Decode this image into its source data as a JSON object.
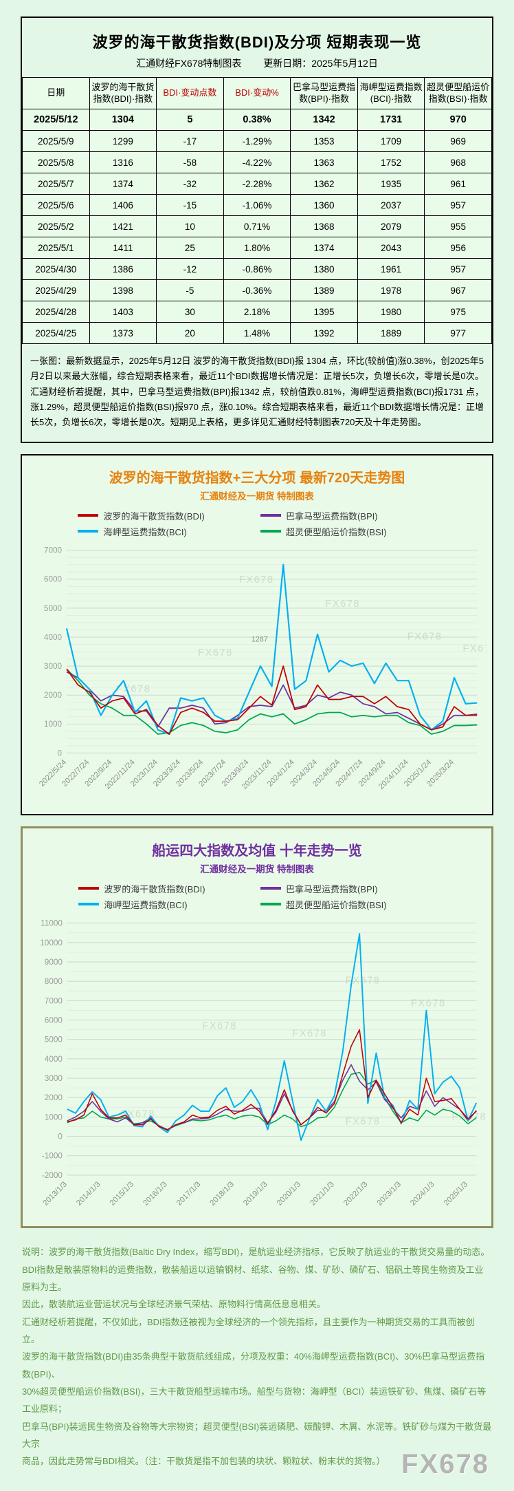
{
  "page": {
    "watermark": "FX678"
  },
  "colors": {
    "bdi": "#c00000",
    "bpi": "#7030a0",
    "bci": "#00b0f0",
    "bsi": "#00a651",
    "table_header_green": "#76f3ad",
    "accent_orange": "#e7820e",
    "accent_purple": "#7030a0",
    "footer_green": "#5f9a48",
    "page_bg": "#e3f7e6"
  },
  "panel1": {
    "title": "波罗的海干散货指数(BDI)及分项  短期表现一览",
    "source": "汇通财经FX678特制图表",
    "updated": "更新日期：2025年5月12日",
    "table": {
      "headers": [
        "日期",
        "波罗的海干散货指数(BDI)·指数",
        "BDI·变动点数",
        "BDI·变动%",
        "巴拿马型运费指数(BPI)·指数",
        "海岬型运费指数(BCI)·指数",
        "超灵便型船运价指数(BSI)·指数"
      ],
      "rows": [
        [
          "2025/5/12",
          "1304",
          "5",
          "0.38%",
          "1342",
          "1731",
          "970"
        ],
        [
          "2025/5/9",
          "1299",
          "-17",
          "-1.29%",
          "1353",
          "1709",
          "969"
        ],
        [
          "2025/5/8",
          "1316",
          "-58",
          "-4.22%",
          "1363",
          "1752",
          "968"
        ],
        [
          "2025/5/7",
          "1374",
          "-32",
          "-2.28%",
          "1362",
          "1935",
          "961"
        ],
        [
          "2025/5/6",
          "1406",
          "-15",
          "-1.06%",
          "1360",
          "2037",
          "957"
        ],
        [
          "2025/5/2",
          "1421",
          "10",
          "0.71%",
          "1368",
          "2079",
          "955"
        ],
        [
          "2025/5/1",
          "1411",
          "25",
          "1.80%",
          "1374",
          "2043",
          "956"
        ],
        [
          "2025/4/30",
          "1386",
          "-12",
          "-0.86%",
          "1380",
          "1961",
          "957"
        ],
        [
          "2025/4/29",
          "1398",
          "-5",
          "-0.36%",
          "1389",
          "1978",
          "967"
        ],
        [
          "2025/4/28",
          "1403",
          "30",
          "2.18%",
          "1395",
          "1980",
          "975"
        ],
        [
          "2025/4/25",
          "1373",
          "20",
          "1.48%",
          "1392",
          "1889",
          "977"
        ]
      ]
    },
    "summary": "一张图：最新数据显示，2025年5月12日 波罗的海干散货指数(BDI)报 1304 点，环比(较前值)涨0.38%，创2025年5月2日以来最大涨幅，综合短期表格来看，最近11个BDI数据增长情况是：正增长5次，负增长6次，零增长是0次。汇通财经析若提醒，其中，巴拿马型运费指数(BPI)报1342 点，较前值跌0.81%，海岬型运费指数(BCI)报1731 点，涨1.29%，超灵便型船运价指数(BSI)报970 点，涨0.10%。综合短期表格来看，最近11个BDI数据增长情况是：正增长5次，负增长6次，零增长是0次。短期见上表格，更多详见汇通财经特制图表720天及十年走势图。"
  },
  "chart_data": [
    {
      "id": "chart720",
      "type": "line",
      "title": "波罗的海干散货指数+三大分项  最新720天走势图",
      "subtitle": "汇通财经及一期货  特制图表",
      "sampling": "monthly estimates read from plot, 2022/5 – 2025/5",
      "x_labels": [
        "2022/5/24",
        "2022/7/24",
        "2022/9/24",
        "2022/11/24",
        "2023/1/24",
        "2023/3/24",
        "2023/5/24",
        "2023/7/24",
        "2023/9/24",
        "2023/11/24",
        "2024/1/24",
        "2024/3/24",
        "2024/5/24",
        "2024/7/24",
        "2024/9/24",
        "2024/11/24",
        "2025/1/24",
        "2025/3/24"
      ],
      "xstep": 2,
      "ylim": [
        0,
        7000
      ],
      "ytick": 1000,
      "minor": 250,
      "grid": true,
      "legend_position": "top",
      "annotations": [
        {
          "text": "1287",
          "fx": 0.45,
          "fy": 0.45
        }
      ],
      "watermarks": [
        [
          0.42,
          0.16
        ],
        [
          0.63,
          0.28
        ],
        [
          0.32,
          0.52
        ],
        [
          0.83,
          0.44
        ],
        [
          0.965,
          0.5
        ],
        [
          0.12,
          0.7
        ]
      ],
      "series": [
        {
          "id": "bdi",
          "name": "波罗的海干散货指数(BDI)",
          "color": "#c00000",
          "z": 4,
          "w": 1.8,
          "values": [
            2900,
            2350,
            2100,
            1550,
            1800,
            1900,
            1350,
            1500,
            950,
            650,
            1400,
            1550,
            1400,
            1100,
            1100,
            1150,
            1550,
            1950,
            1650,
            3000,
            1500,
            1600,
            2350,
            1850,
            1850,
            1950,
            1950,
            1700,
            1950,
            1600,
            1500,
            1000,
            800,
            900,
            1600,
            1300,
            1304
          ]
        },
        {
          "id": "bpi",
          "name": "巴拿马型运费指数(BPI)",
          "color": "#7030a0",
          "z": 2,
          "w": 1.8,
          "values": [
            2800,
            2600,
            2200,
            1800,
            2000,
            1950,
            1450,
            1450,
            900,
            1550,
            1550,
            1650,
            1550,
            1000,
            1050,
            1300,
            1600,
            1650,
            1600,
            2350,
            1550,
            1650,
            2000,
            1900,
            2100,
            2000,
            1700,
            1600,
            1350,
            1400,
            1200,
            1000,
            800,
            1000,
            1300,
            1300,
            1342
          ]
        },
        {
          "id": "bci",
          "name": "海岬型运费指数(BCI)",
          "color": "#00b0f0",
          "z": 3,
          "w": 2.2,
          "values": [
            4300,
            2600,
            2200,
            1300,
            2000,
            2500,
            1400,
            1800,
            800,
            650,
            1900,
            1800,
            1900,
            1300,
            1100,
            1200,
            2100,
            3000,
            2300,
            6500,
            2200,
            2500,
            4100,
            2800,
            3200,
            3000,
            3100,
            2400,
            3100,
            2500,
            2500,
            1300,
            800,
            1100,
            2600,
            1700,
            1731
          ]
        },
        {
          "id": "bsi",
          "name": "超灵便型船运价指数(BSI)",
          "color": "#00a651",
          "z": 1,
          "w": 1.8,
          "values": [
            2900,
            2500,
            2000,
            1700,
            1550,
            1300,
            1300,
            1000,
            650,
            700,
            950,
            1050,
            950,
            750,
            700,
            800,
            1150,
            1350,
            1250,
            1350,
            1000,
            1150,
            1350,
            1400,
            1400,
            1250,
            1300,
            1250,
            1300,
            1300,
            1050,
            950,
            650,
            750,
            950,
            950,
            970
          ]
        }
      ]
    },
    {
      "id": "chart10y",
      "type": "line",
      "title": "船运四大指数及均值 十年走势一览",
      "subtitle": "汇通财经及一期货 特制图表",
      "sampling": "quarterly estimates read from plot, 2013 – 2025",
      "x_labels": [
        "2013/1/3",
        "2014/1/3",
        "2015/1/3",
        "2016/1/3",
        "2017/1/3",
        "2018/1/3",
        "2019/1/3",
        "2020/1/3",
        "2021/1/3",
        "2022/1/3",
        "2023/1/3",
        "2024/1/3",
        "2025/1/3"
      ],
      "xstep": 4,
      "ylim": [
        -2000,
        11000
      ],
      "ytick": 1000,
      "minor": 500,
      "grid": true,
      "legend_position": "top",
      "annotations": [],
      "watermarks": [
        [
          0.13,
          0.77
        ],
        [
          0.33,
          0.42
        ],
        [
          0.55,
          0.45
        ],
        [
          0.68,
          0.24
        ],
        [
          0.84,
          0.33
        ],
        [
          0.68,
          0.8
        ],
        [
          0.94,
          0.78
        ]
      ],
      "series": [
        {
          "id": "bdi",
          "name": "波罗的海干散货指数(BDI)",
          "color": "#c00000",
          "z": 4,
          "w": 1.6,
          "values": [
            750,
            850,
            1100,
            2200,
            1400,
            950,
            950,
            1100,
            600,
            600,
            900,
            500,
            350,
            600,
            750,
            1100,
            950,
            1000,
            1350,
            1550,
            1150,
            1350,
            1650,
            1300,
            650,
            1350,
            2400,
            1300,
            600,
            950,
            1500,
            1200,
            1700,
            3200,
            4650,
            5500,
            2000,
            2900,
            2200,
            1500,
            700,
            1400,
            1100,
            3000,
            1800,
            1850,
            1950,
            1400,
            900,
            1304
          ]
        },
        {
          "id": "bpi",
          "name": "巴拿马型运费指数(BPI)",
          "color": "#7030a0",
          "z": 2,
          "w": 1.6,
          "values": [
            800,
            1000,
            1300,
            1800,
            1300,
            900,
            750,
            950,
            600,
            700,
            950,
            550,
            300,
            600,
            700,
            900,
            900,
            950,
            1150,
            1400,
            1300,
            1300,
            1450,
            1450,
            700,
            1250,
            2200,
            1350,
            600,
            950,
            1350,
            1300,
            1800,
            2900,
            3700,
            2850,
            2400,
            2800,
            1900,
            1450,
            950,
            1550,
            1400,
            2350,
            1550,
            2000,
            1700,
            1400,
            800,
            1342
          ]
        },
        {
          "id": "bci",
          "name": "海岬型运费指数(BCI)",
          "color": "#00b0f0",
          "z": 3,
          "w": 2.0,
          "values": [
            1400,
            1200,
            1800,
            2300,
            1900,
            1000,
            1100,
            1300,
            550,
            500,
            1050,
            500,
            200,
            800,
            1100,
            1600,
            1300,
            1300,
            2100,
            2500,
            1500,
            1800,
            2400,
            1700,
            350,
            1800,
            3900,
            1800,
            -200,
            900,
            1900,
            1300,
            2100,
            4400,
            7800,
            10450,
            1700,
            4300,
            2000,
            1600,
            650,
            1850,
            1400,
            6500,
            2200,
            2800,
            3100,
            2500,
            800,
            1731
          ]
        },
        {
          "id": "bsi",
          "name": "超灵便型船运价指数(BSI)",
          "color": "#00a651",
          "z": 1,
          "w": 1.6,
          "values": [
            700,
            900,
            950,
            1300,
            1000,
            900,
            900,
            1000,
            650,
            700,
            800,
            550,
            350,
            550,
            700,
            850,
            800,
            850,
            1000,
            1100,
            900,
            1050,
            1100,
            1000,
            600,
            800,
            1100,
            900,
            500,
            650,
            950,
            1000,
            1500,
            2400,
            3200,
            3300,
            2700,
            2900,
            2000,
            1300,
            700,
            950,
            800,
            1350,
            1100,
            1400,
            1300,
            1050,
            650,
            970
          ]
        }
      ]
    }
  ],
  "footer": {
    "lines": [
      "说明：波罗的海干散货指数(Baltic Dry Index，缩写BDI)，是航运业经济指标，它反映了航运业的干散货交易量的动态。",
      "BDI指数是散装原物料的运费指数，散装船运以运输钢材、纸浆、谷物、煤、矿砂、磷矿石、铝矾土等民生物资及工业原料为主。",
      "因此，散装航运业营运状况与全球经济景气荣枯、原物料行情高低息息相关。",
      "汇通财经析若提醒，不仅如此，BDI指数还被视为全球经济的一个领先指标，且主要作为一种期货交易的工具而被创立。",
      "波罗的海干散货指数(BDI)由35条典型干散货航线组成，分项及权重：40%海岬型运费指数(BCI)、30%巴拿马型运费指数(BPI)、",
      "30%超灵便型船运价指数(BSI)，三大干散货船型运输市场。船型与货物：海岬型（BCI）装运铁矿砂、焦煤、磷矿石等工业原料；",
      "巴拿马(BPI)装运民生物资及谷物等大宗物资；超灵便型(BSI)装运磷肥、碳酸钾、木屑、水泥等。铁矿砂与煤为干散货最大宗",
      "商品，因此走势常与BDI相关。（注：干散货是指不加包装的块状、颗粒状、粉末状的货物。）"
    ]
  }
}
